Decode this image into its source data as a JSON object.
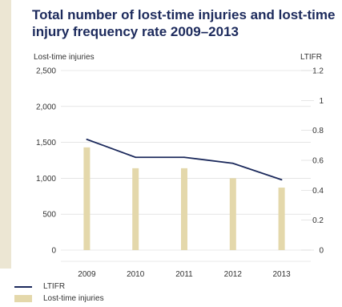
{
  "colors": {
    "line": "#1c2a5c",
    "bar": "#e4d8ab",
    "title": "#1c2a5c",
    "grid": "#d6d6d6"
  },
  "chart_data": {
    "type": "bar",
    "title": "Total number of lost-time injuries and lost-time injury frequency rate 2009–2013",
    "categories": [
      "2009",
      "2010",
      "2011",
      "2012",
      "2013"
    ],
    "ylabel": "Lost-time injuries",
    "y2label": "LTIFR",
    "ylim": [
      0,
      2500
    ],
    "y2lim": [
      0,
      1.2
    ],
    "yticks": [
      "2,500",
      "2,000",
      "1,500",
      "1,000",
      "500",
      "0"
    ],
    "y2ticks": [
      "1.2",
      "1",
      "0.8",
      "0.6",
      "0.4",
      "0.2",
      "0"
    ],
    "series": [
      {
        "name": "Lost-time injuries",
        "type": "bar",
        "axis": "left",
        "values": [
          1430,
          1140,
          1140,
          1000,
          870
        ]
      },
      {
        "name": "LTIFR",
        "type": "line",
        "axis": "right",
        "values": [
          0.74,
          0.62,
          0.62,
          0.58,
          0.47
        ]
      }
    ],
    "grid": true,
    "legend_position": "bottom-left"
  }
}
